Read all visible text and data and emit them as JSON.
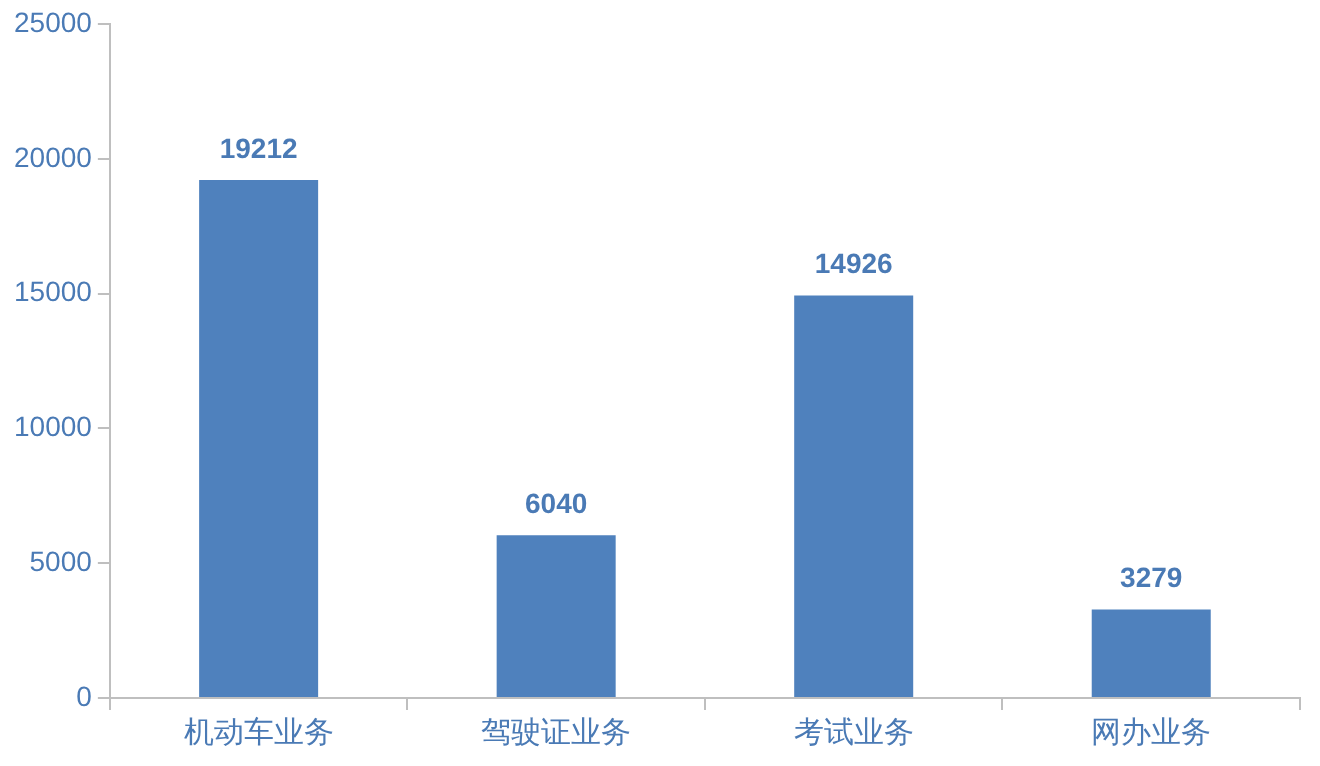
{
  "chart_data": {
    "type": "bar",
    "categories": [
      "机动车业务",
      "驾驶证业务",
      "考试业务",
      "网办业务"
    ],
    "values": [
      19212,
      6040,
      14926,
      3279
    ],
    "color": "#4f81bd",
    "ylim": [
      0,
      25000
    ],
    "yticks": [
      0,
      5000,
      10000,
      15000,
      20000,
      25000
    ],
    "grid": false,
    "data_labels": true
  }
}
